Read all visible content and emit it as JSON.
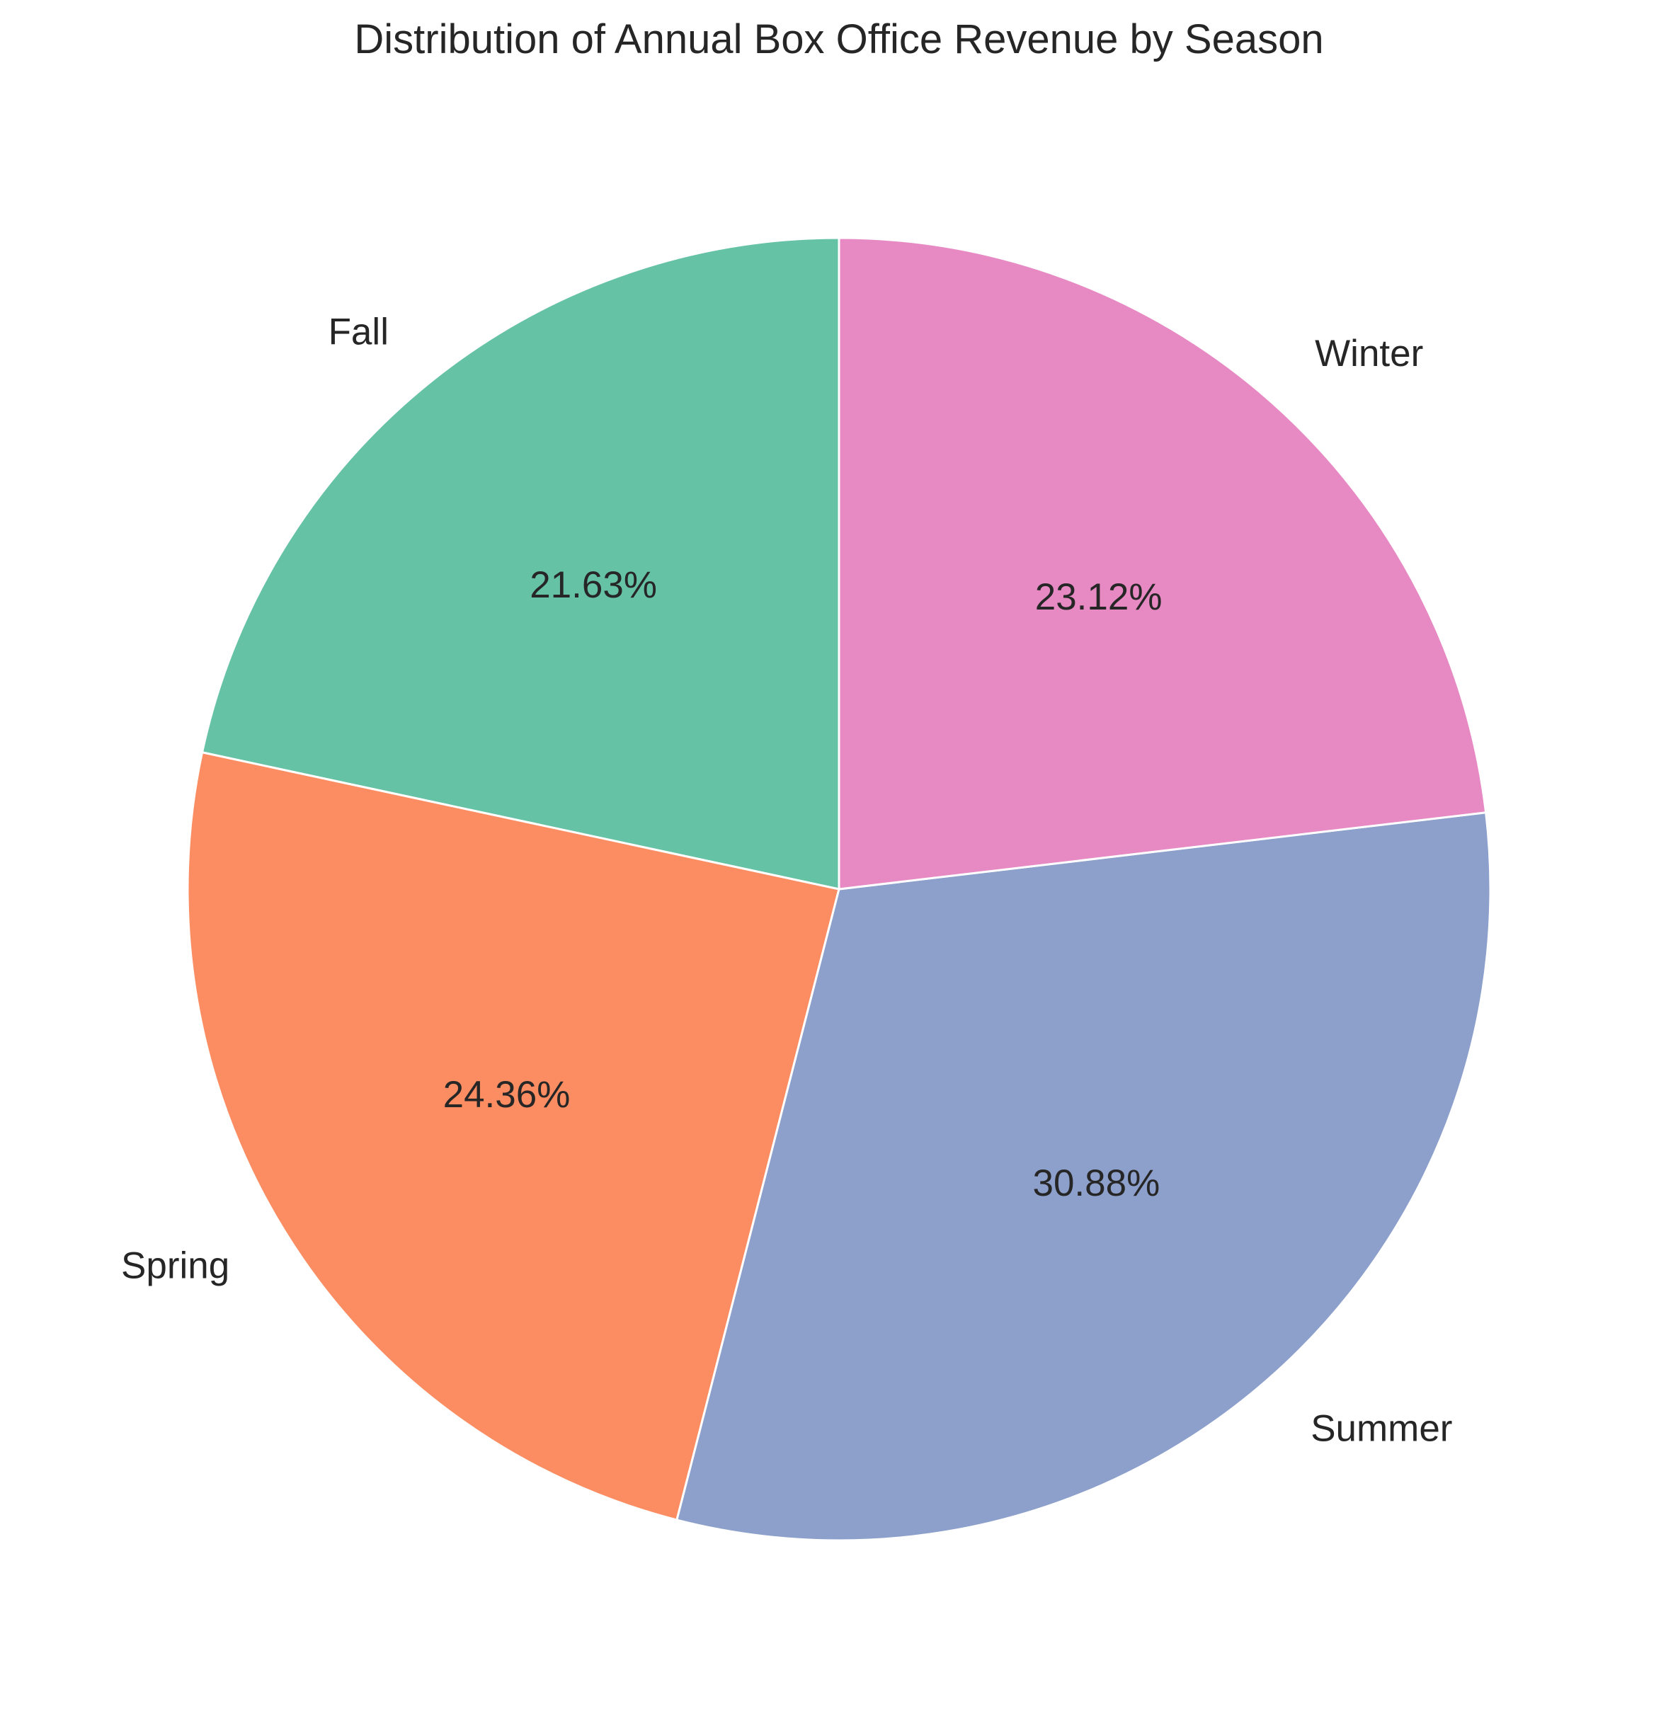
{
  "chart_data": {
    "type": "pie",
    "title": "Distribution of Annual Box Office Revenue by Season",
    "categories": [
      "Fall",
      "Spring",
      "Summer",
      "Winter"
    ],
    "values": [
      21.63,
      24.36,
      30.88,
      23.12
    ],
    "value_labels": [
      "21.63%",
      "24.36%",
      "30.88%",
      "23.12%"
    ],
    "colors": [
      "#66c2a5",
      "#fc8d62",
      "#8da0cb",
      "#e78ac3"
    ],
    "start_angle_deg": 90,
    "direction": "counterclockwise",
    "edge_color": "#ffffff",
    "legend": "none"
  }
}
